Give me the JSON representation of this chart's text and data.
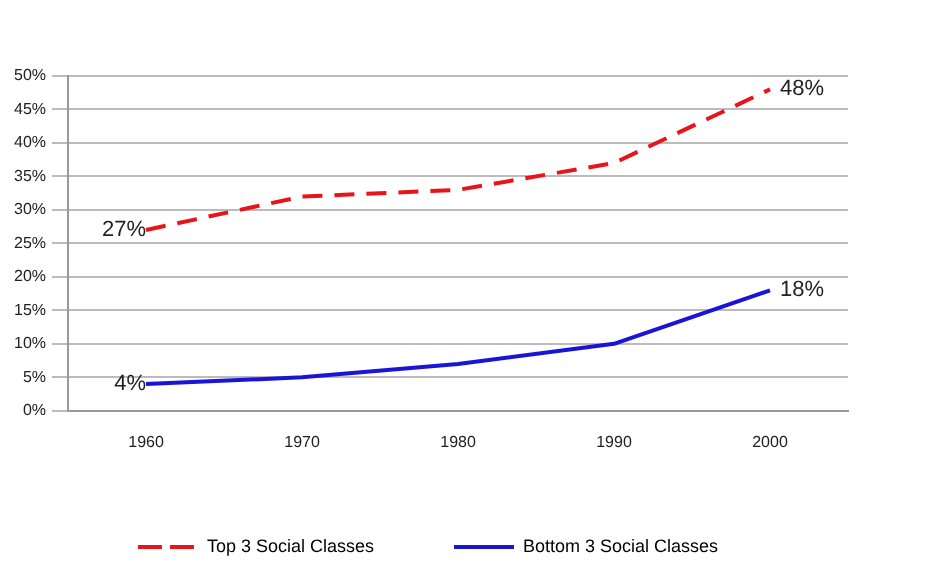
{
  "chart_data": {
    "type": "line",
    "categories": [
      "1960",
      "1970",
      "1980",
      "1990",
      "2000"
    ],
    "series": [
      {
        "name": "Top 3 Social Classes",
        "color": "#e8141b",
        "line_style": "dashed",
        "values": [
          27,
          32,
          33,
          37,
          48
        ],
        "value_labels": [
          "27%",
          null,
          null,
          null,
          "48%"
        ]
      },
      {
        "name": "Bottom 3 Social Classes",
        "color": "#1a14d6",
        "line_style": "solid",
        "values": [
          4,
          5,
          7,
          10,
          18
        ],
        "value_labels": [
          "4%",
          null,
          null,
          null,
          "18%"
        ]
      }
    ],
    "ylim": [
      0,
      50
    ],
    "yticks": [
      {
        "value": 0,
        "label": "0%"
      },
      {
        "value": 5,
        "label": "5%"
      },
      {
        "value": 10,
        "label": "10%"
      },
      {
        "value": 15,
        "label": "15%"
      },
      {
        "value": 20,
        "label": "20%"
      },
      {
        "value": 25,
        "label": "25%"
      },
      {
        "value": 30,
        "label": "30%"
      },
      {
        "value": 35,
        "label": "35%"
      },
      {
        "value": 40,
        "label": "40%"
      },
      {
        "value": 45,
        "label": "45%"
      },
      {
        "value": 50,
        "label": "50%"
      }
    ],
    "grid": "y",
    "legend": "bottom",
    "marker": "none"
  }
}
